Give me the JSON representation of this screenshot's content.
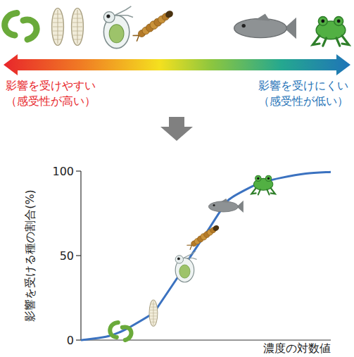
{
  "chart_data": {
    "type": "line",
    "x_label": "濃度の対数値",
    "y_label": "影響を受ける種の割合(%)",
    "annotations": [
      "影響を受けやすい",
      "（感受性が高い）",
      "影響を受けにくい",
      "（感受性が低い）"
    ],
    "x": [
      0,
      1,
      1.6,
      2,
      2.9,
      3,
      4,
      4.1,
      4.9,
      5,
      5.7,
      6,
      7,
      7.3,
      8,
      9,
      10
    ],
    "series": [
      {
        "color": "#3b72c0",
        "line_style": "solid",
        "values": [
          0,
          2,
          5,
          8,
          16,
          18,
          40,
          43,
          61,
          63,
          79,
          84,
          92,
          93.5,
          96,
          98.5,
          99.5
        ]
      },
      {
        "type": "scatter",
        "marker": "icon",
        "values": [
          null,
          null,
          5,
          null,
          16,
          null,
          null,
          43,
          61,
          null,
          79,
          null,
          null,
          93.5,
          null,
          null,
          null
        ]
      }
    ],
    "xlim": [
      0,
      10
    ],
    "ylim": [
      0,
      100
    ],
    "yticks": [
      0,
      50,
      100
    ],
    "tick_labels": "y",
    "grid": false
  }
}
